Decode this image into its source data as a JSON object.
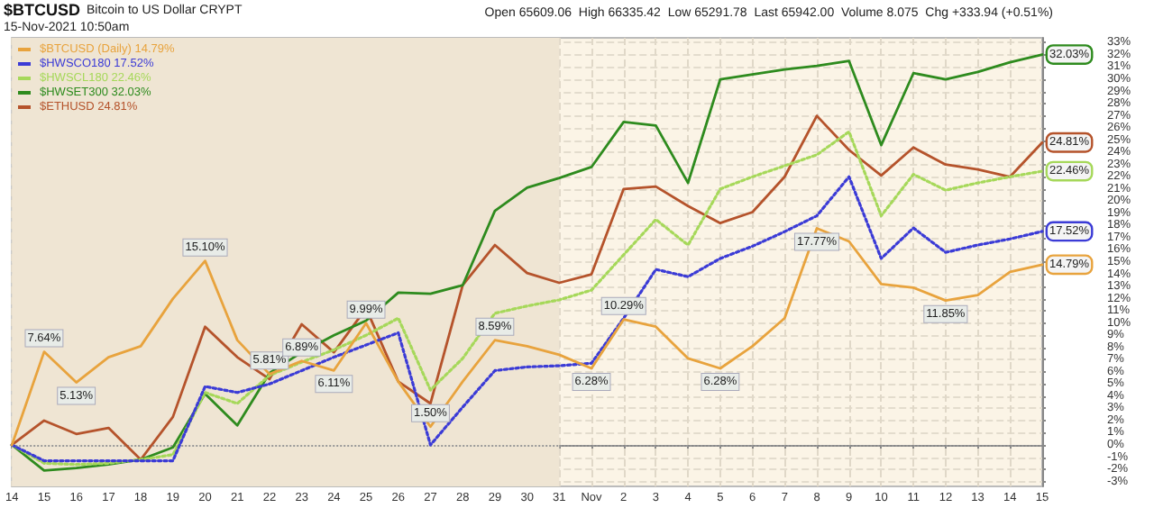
{
  "chart_data": {
    "type": "line",
    "title": "$BTCUSD",
    "subtitle": "Bitcoin to US Dollar CRYPT",
    "annotations": [
      "15-Nov-2021 10:50am",
      "Open 65609.06  High 66335.42  Low 65291.78  Last 65942.00  Volume 8.075  Chg +333.94 (+0.51%)"
    ],
    "categories": [
      "14",
      "15",
      "16",
      "17",
      "18",
      "19",
      "20",
      "21",
      "22",
      "23",
      "24",
      "25",
      "26",
      "27",
      "28",
      "29",
      "30",
      "31",
      "Nov",
      "2",
      "3",
      "4",
      "5",
      "6",
      "7",
      "8",
      "9",
      "10",
      "11",
      "12",
      "13",
      "14",
      "15"
    ],
    "series": [
      {
        "name": "$BTCUSD (Daily) 14.79%",
        "color": "#e8a33d",
        "values": [
          0,
          7.64,
          5.13,
          7.2,
          8.1,
          12.0,
          15.1,
          8.6,
          5.81,
          6.89,
          6.11,
          9.99,
          5.2,
          1.5,
          5.2,
          8.59,
          8.1,
          7.4,
          6.28,
          10.29,
          9.7,
          7.1,
          6.28,
          8.1,
          10.4,
          17.77,
          16.7,
          13.2,
          12.9,
          11.85,
          12.3,
          14.2,
          14.79
        ],
        "value_labels": [
          null,
          "7.64%",
          "5.13%",
          null,
          null,
          null,
          "15.10%",
          null,
          "5.81%",
          "6.89%",
          "6.11%",
          "9.99%",
          null,
          "1.50%",
          null,
          "8.59%",
          null,
          null,
          "6.28%",
          "10.29%",
          null,
          null,
          "6.28%",
          null,
          null,
          "17.77%",
          null,
          null,
          null,
          "11.85%",
          null,
          null,
          "14.79%"
        ]
      },
      {
        "name": "$HWSCO180 17.52%",
        "color": "#3b3bd6",
        "line_style": "dotted",
        "values": [
          0,
          -1.3,
          -1.3,
          -1.3,
          -1.3,
          -1.3,
          4.8,
          4.3,
          5.0,
          6.1,
          7.2,
          8.2,
          9.2,
          0.0,
          3.1,
          6.1,
          6.4,
          6.5,
          6.7,
          10.4,
          14.4,
          13.8,
          15.3,
          16.3,
          17.5,
          18.8,
          22.0,
          15.3,
          17.8,
          15.8,
          16.4,
          16.9,
          17.52
        ],
        "value_labels": [
          null,
          null,
          null,
          null,
          null,
          null,
          null,
          null,
          null,
          null,
          null,
          null,
          null,
          null,
          null,
          null,
          null,
          null,
          null,
          null,
          null,
          null,
          null,
          null,
          null,
          null,
          null,
          null,
          null,
          null,
          null,
          null,
          "17.52%"
        ]
      },
      {
        "name": "$HWSCL180 22.46%",
        "color": "#a6d85a",
        "line_style": "dotted",
        "values": [
          0,
          -1.5,
          -1.6,
          -1.5,
          -1.2,
          -0.8,
          4.3,
          3.4,
          5.7,
          6.8,
          7.8,
          9.0,
          10.4,
          4.5,
          7.1,
          10.8,
          11.4,
          11.9,
          12.7,
          15.6,
          18.5,
          16.4,
          21.0,
          22.0,
          22.9,
          23.8,
          25.7,
          18.8,
          22.2,
          20.9,
          21.5,
          22.0,
          22.46
        ],
        "value_labels": [
          null,
          null,
          null,
          null,
          null,
          null,
          null,
          null,
          null,
          null,
          null,
          null,
          null,
          null,
          null,
          null,
          null,
          null,
          null,
          null,
          null,
          null,
          null,
          null,
          null,
          null,
          null,
          null,
          null,
          null,
          null,
          null,
          "22.46%"
        ]
      },
      {
        "name": "$HWSET300 32.03%",
        "color": "#2e8b1e",
        "values": [
          0,
          -2.1,
          -1.9,
          -1.6,
          -1.2,
          -0.2,
          4.2,
          1.6,
          5.9,
          7.6,
          9.0,
          10.2,
          12.5,
          12.4,
          13.1,
          19.2,
          21.1,
          21.9,
          22.8,
          26.5,
          26.2,
          21.5,
          30.0,
          30.4,
          30.8,
          31.1,
          31.5,
          24.6,
          30.5,
          30.0,
          30.6,
          31.4,
          32.03
        ],
        "value_labels": [
          null,
          null,
          null,
          null,
          null,
          null,
          null,
          null,
          null,
          null,
          null,
          null,
          null,
          null,
          null,
          null,
          null,
          null,
          null,
          null,
          null,
          null,
          null,
          null,
          null,
          null,
          null,
          null,
          null,
          null,
          null,
          null,
          "32.03%"
        ]
      },
      {
        "name": "$ETHUSD 24.81%",
        "color": "#b5532b",
        "values": [
          0,
          2.0,
          0.9,
          1.4,
          -1.2,
          2.3,
          9.7,
          7.2,
          5.4,
          9.9,
          7.6,
          11.2,
          5.2,
          3.4,
          13.1,
          16.4,
          14.1,
          13.3,
          14.0,
          21.0,
          21.2,
          19.6,
          18.2,
          19.1,
          22.0,
          27.0,
          24.2,
          22.1,
          24.4,
          23.0,
          22.6,
          22.0,
          24.81
        ],
        "value_labels": [
          null,
          null,
          null,
          null,
          null,
          null,
          null,
          null,
          null,
          null,
          null,
          null,
          null,
          null,
          null,
          null,
          null,
          null,
          null,
          null,
          null,
          null,
          null,
          null,
          null,
          null,
          null,
          null,
          null,
          null,
          null,
          null,
          "24.81%"
        ]
      }
    ],
    "ylim": [
      -3.4,
      33.4
    ],
    "yticks": [
      {
        "value": -3,
        "label": "-3%"
      },
      {
        "value": -2,
        "label": "-2%"
      },
      {
        "value": -1,
        "label": "-1%"
      },
      {
        "value": 0,
        "label": "0%"
      },
      {
        "value": 1,
        "label": "1%"
      },
      {
        "value": 2,
        "label": "2%"
      },
      {
        "value": 3,
        "label": "3%"
      },
      {
        "value": 4,
        "label": "4%"
      },
      {
        "value": 5,
        "label": "5%"
      },
      {
        "value": 6,
        "label": "6%"
      },
      {
        "value": 7,
        "label": "7%"
      },
      {
        "value": 8,
        "label": "8%"
      },
      {
        "value": 9,
        "label": "9%"
      },
      {
        "value": 10,
        "label": "10%"
      },
      {
        "value": 11,
        "label": "11%"
      },
      {
        "value": 12,
        "label": "12%"
      },
      {
        "value": 13,
        "label": "13%"
      },
      {
        "value": 14,
        "label": "14%"
      },
      {
        "value": 15,
        "label": "15%"
      },
      {
        "value": 16,
        "label": "16%"
      },
      {
        "value": 17,
        "label": "17%"
      },
      {
        "value": 18,
        "label": "18%"
      },
      {
        "value": 19,
        "label": "19%"
      },
      {
        "value": 20,
        "label": "20%"
      },
      {
        "value": 21,
        "label": "21%"
      },
      {
        "value": 22,
        "label": "22%"
      },
      {
        "value": 23,
        "label": "23%"
      },
      {
        "value": 24,
        "label": "24%"
      },
      {
        "value": 25,
        "label": "25%"
      },
      {
        "value": 26,
        "label": "26%"
      },
      {
        "value": 27,
        "label": "27%"
      },
      {
        "value": 28,
        "label": "28%"
      },
      {
        "value": 29,
        "label": "29%"
      },
      {
        "value": 30,
        "label": "30%"
      },
      {
        "value": 31,
        "label": "31%"
      },
      {
        "value": 32,
        "label": "32%"
      },
      {
        "value": 33,
        "label": "33%"
      }
    ],
    "ref_lines": [
      {
        "axis": "y",
        "value": 0,
        "line_style": "dotted",
        "color": "#999999"
      }
    ],
    "bands": [
      {
        "axis": "x",
        "from": "14",
        "to": "31",
        "color": "#efe5d3"
      }
    ],
    "grid": true,
    "legend": "top left",
    "marker": "none",
    "line_style": "solid"
  }
}
